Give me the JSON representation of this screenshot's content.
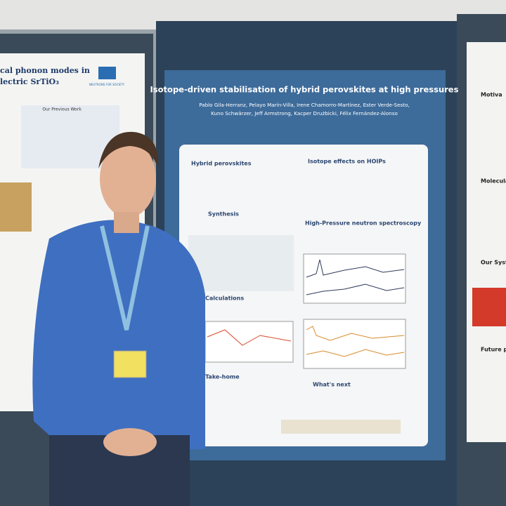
{
  "poster": {
    "title": "Isotope-driven stabilisation of hybrid perovskites at high pressures",
    "authors": [
      "Pablo Gila-Herranz, Pelayo Marín-Villa, Irene Chamorro-Martínez, Ester Verde-Sesto,",
      "Kuno Schwärzer, Jeff Armstrong, Kacper Drużbicki, Félix Fernández-Alonso"
    ],
    "sections": [
      "Hybrid perovskites",
      "Isotope effects on HOIPs",
      "Synthesis",
      "High-Pressure neutron spectroscopy",
      "Calculations",
      "Take-home",
      "What's next"
    ]
  },
  "left_poster": {
    "title_lines": [
      "cal phonon modes in",
      "lectric SrTiO₃"
    ],
    "logo": "NEUTRONS FOR SOCIETY",
    "heading": "Our Previous Work"
  },
  "right_poster": {
    "headings": [
      "Motiva",
      "Molecula",
      "Our System",
      "Future plan"
    ]
  }
}
